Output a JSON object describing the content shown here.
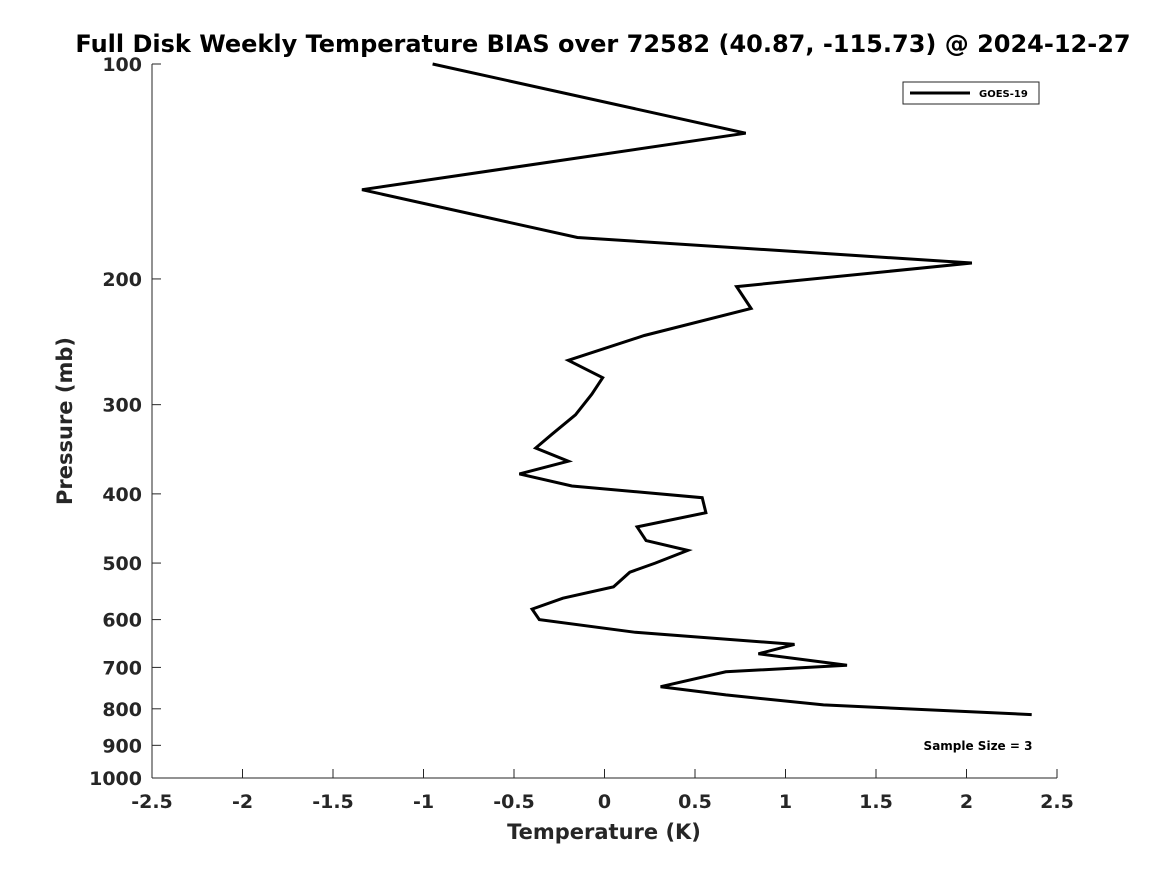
{
  "chart_data": {
    "type": "line",
    "title": "Full Disk Weekly Temperature BIAS over 72582 (40.87, -115.73) @ 2024-12-27",
    "xlabel": "Temperature (K)",
    "ylabel": "Pressure (mb)",
    "xlim": [
      -2.5,
      2.5
    ],
    "ylim": [
      100,
      1000
    ],
    "y_scale": "log",
    "y_reversed": true,
    "x_ticks": [
      -2.5,
      -2,
      -1.5,
      -1,
      -0.5,
      0,
      0.5,
      1,
      1.5,
      2,
      2.5
    ],
    "x_tick_labels": [
      "-2.5",
      "-2",
      "-1.5",
      "-1",
      "-0.5",
      "0",
      "0.5",
      "1",
      "1.5",
      "2",
      "2.5"
    ],
    "y_ticks": [
      100,
      200,
      300,
      400,
      500,
      600,
      700,
      800,
      900,
      1000
    ],
    "y_tick_labels": [
      "100",
      "200",
      "300",
      "400",
      "500",
      "600",
      "700",
      "800",
      "900",
      "1000"
    ],
    "grid": false,
    "legend_position": "top-right",
    "series": [
      {
        "name": "GOES-19",
        "color": "#000000",
        "x": [
          -0.95,
          0.78,
          -1.34,
          -0.15,
          2.03,
          0.73,
          0.81,
          0.22,
          -0.2,
          -0.01,
          -0.07,
          -0.16,
          -0.29,
          -0.38,
          -0.2,
          -0.47,
          -0.18,
          0.54,
          0.56,
          0.18,
          0.23,
          0.46,
          0.28,
          0.14,
          0.05,
          -0.23,
          -0.4,
          -0.36,
          0.17,
          1.05,
          0.85,
          1.34,
          0.67,
          0.31,
          0.67,
          1.21,
          2.36
        ],
        "y": [
          100,
          125,
          150,
          175,
          190,
          205,
          220,
          240,
          260,
          275,
          290,
          310,
          330,
          345,
          360,
          375,
          390,
          405,
          425,
          445,
          465,
          480,
          500,
          515,
          540,
          560,
          580,
          600,
          625,
          650,
          670,
          695,
          710,
          745,
          765,
          790,
          815
        ]
      }
    ],
    "annotations": [
      "Sample Size = 3"
    ]
  }
}
